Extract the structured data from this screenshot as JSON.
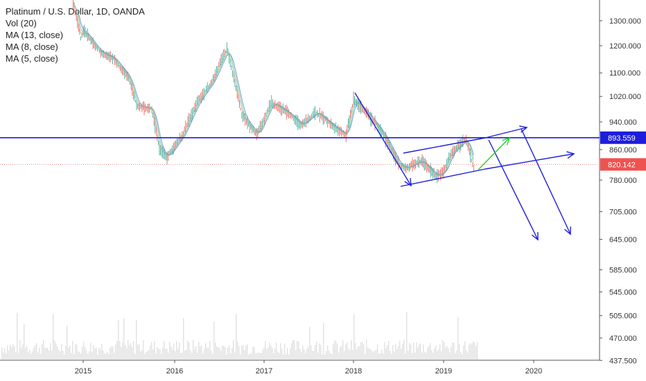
{
  "legend": {
    "title": "Platinum / U.S. Dollar, 1D, OANDA",
    "vol": "Vol (20)",
    "ma13": "MA (13, close)",
    "ma8": "MA (8, close)",
    "ma5": "MA (5, close)"
  },
  "colors": {
    "up": "#26a69a",
    "down": "#ef5350",
    "ma": "#5b8fd0",
    "drawing": "#1d1ddb",
    "arrow_green": "#22d622",
    "current_line": "#f08a8a",
    "level_tag": "#1d1ddb",
    "current_tag": "#ef5350",
    "volume": "#c9c9c9"
  },
  "chart_data": {
    "type": "line",
    "title": "Platinum / U.S. Dollar, 1D, OANDA",
    "x_ticks": [
      "2015",
      "2016",
      "2017",
      "2018",
      "2019",
      "2020"
    ],
    "y_ticks": [
      "1300.000",
      "1200.000",
      "1100.000",
      "1020.000",
      "940.000",
      "860.000",
      "780.000",
      "705.000",
      "645.000",
      "585.000",
      "545.000",
      "505.000",
      "470.000",
      "437.500"
    ],
    "y_scale": "log",
    "x": [
      "2014-09",
      "2014-11",
      "2015-01",
      "2015-03",
      "2015-05",
      "2015-07",
      "2015-08",
      "2015-10",
      "2015-11",
      "2015-12",
      "2016-02",
      "2016-04",
      "2016-06",
      "2016-08",
      "2016-10",
      "2016-12",
      "2017-02",
      "2017-04",
      "2017-06",
      "2017-08",
      "2017-10",
      "2017-12",
      "2018-01",
      "2018-03",
      "2018-05",
      "2018-07",
      "2018-08",
      "2018-10",
      "2018-12",
      "2019-01",
      "2019-02",
      "2019-04",
      "2019-05"
    ],
    "series": [
      {
        "values": [
          1380,
          1230,
          1260,
          1180,
          1150,
          1080,
          990,
          980,
          860,
          840,
          900,
          1000,
          1070,
          1190,
          960,
          900,
          1000,
          970,
          930,
          970,
          930,
          900,
          1010,
          960,
          900,
          820,
          810,
          830,
          790,
          800,
          850,
          890,
          810
        ]
      }
    ],
    "levels": [
      {
        "label": "893.559",
        "value": 893.559
      },
      {
        "label": "820.142",
        "value": 820.142
      }
    ]
  }
}
